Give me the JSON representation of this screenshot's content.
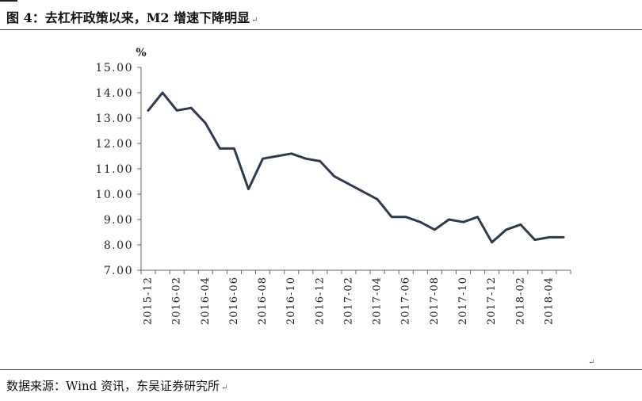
{
  "title": "图 4：去杠杆政策以来，M2 增速下降明显",
  "source": "数据来源：Wind 资讯，东吴证券研究所",
  "paragraph_mark": "↵",
  "colors": {
    "line": "#2e3b4e",
    "axis": "#666666",
    "text": "#222222"
  },
  "chart_data": {
    "type": "line",
    "title": "",
    "xlabel": "",
    "ylabel": "%",
    "ylim": [
      7,
      15
    ],
    "yticks": [
      "7.00",
      "8.00",
      "9.00",
      "10.00",
      "11.00",
      "12.00",
      "13.00",
      "14.00",
      "15.00"
    ],
    "xtick_labels": [
      "2015-12",
      "2016-02",
      "2016-04",
      "2016-06",
      "2016-08",
      "2016-10",
      "2016-12",
      "2017-02",
      "2017-04",
      "2017-06",
      "2017-08",
      "2017-10",
      "2017-12",
      "2018-02",
      "2018-04"
    ],
    "grid": false,
    "legend": "none",
    "x": [
      "2015-12",
      "2016-01",
      "2016-02",
      "2016-03",
      "2016-04",
      "2016-05",
      "2016-06",
      "2016-07",
      "2016-08",
      "2016-09",
      "2016-10",
      "2016-11",
      "2016-12",
      "2017-01",
      "2017-02",
      "2017-03",
      "2017-04",
      "2017-05",
      "2017-06",
      "2017-07",
      "2017-08",
      "2017-09",
      "2017-10",
      "2017-11",
      "2017-12",
      "2018-01",
      "2018-02",
      "2018-03",
      "2018-04",
      "2018-05"
    ],
    "series": [
      {
        "values": [
          13.3,
          14.0,
          13.3,
          13.4,
          12.8,
          11.8,
          11.8,
          10.2,
          11.4,
          11.5,
          11.6,
          11.4,
          11.3,
          10.7,
          10.4,
          10.1,
          9.8,
          9.1,
          9.1,
          8.9,
          8.6,
          9.0,
          8.9,
          9.1,
          8.1,
          8.6,
          8.8,
          8.2,
          8.3,
          8.3
        ]
      }
    ]
  }
}
